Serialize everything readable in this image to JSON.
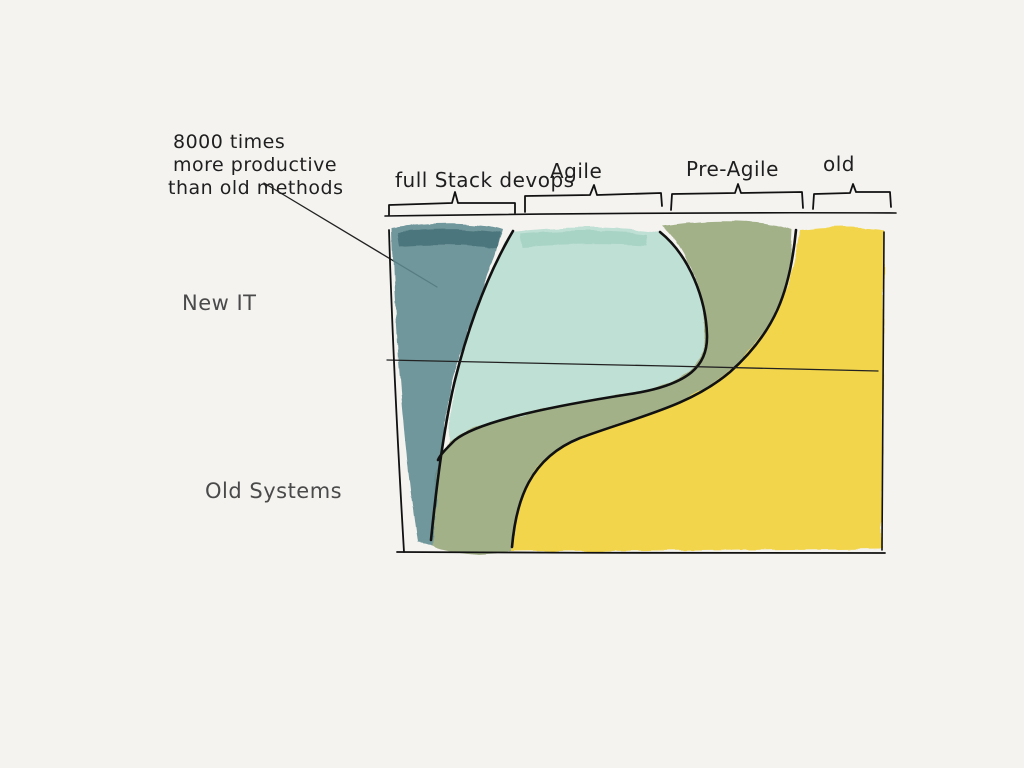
{
  "annotation": {
    "lines": [
      "8000 times",
      "more productive",
      "than old methods"
    ]
  },
  "side_labels": {
    "top": "New IT",
    "bottom": "Old Systems"
  },
  "categories": [
    {
      "label": "full Stack devops",
      "color": "#5f8a90"
    },
    {
      "label": "Agile",
      "color": "#b7dccf"
    },
    {
      "label": "Pre-Agile",
      "color": "#9aaa7f"
    },
    {
      "label": "old",
      "color": "#f1d13c"
    }
  ],
  "colors": {
    "background": "#f4f3f0",
    "ink": "#111111",
    "fullstack": "#5f8a90",
    "agile": "#b7dccf",
    "preagile": "#9aaa7f",
    "old": "#f1d13c"
  }
}
